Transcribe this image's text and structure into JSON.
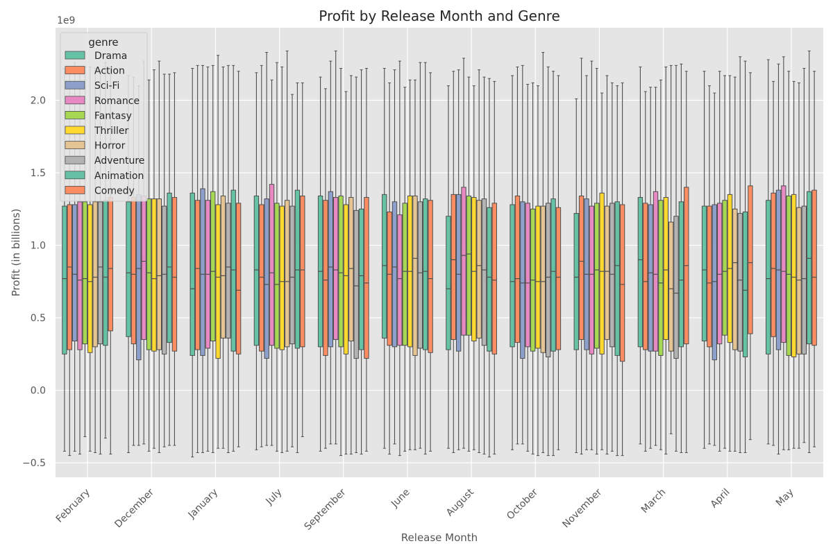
{
  "chart_data": {
    "type": "box",
    "title": "Profit by Release Month and Genre",
    "xlabel": "Release Month",
    "ylabel": "Profit (in billions)",
    "y_offset_label": "1e9",
    "ylim": [
      -0.6,
      2.5
    ],
    "y_ticks": [
      -0.5,
      0.0,
      0.5,
      1.0,
      1.5,
      2.0
    ],
    "y_tick_labels": [
      "−0.5",
      "0.0",
      "0.5",
      "1.0",
      "1.5",
      "2.0"
    ],
    "categories": [
      "February",
      "December",
      "January",
      "July",
      "September",
      "June",
      "August",
      "October",
      "November",
      "March",
      "April",
      "May"
    ],
    "legend": {
      "title": "genre",
      "position": "upper-left"
    },
    "grid": true,
    "series": [
      {
        "name": "Drama",
        "color": "#66c2a5",
        "boxes": [
          [
            -0.42,
            0.25,
            0.77,
            1.27,
            2.22
          ],
          [
            -0.43,
            0.37,
            0.81,
            1.3,
            2.17
          ],
          [
            -0.46,
            0.24,
            0.7,
            1.36,
            2.22
          ],
          [
            -0.41,
            0.31,
            0.83,
            1.34,
            2.19
          ],
          [
            -0.42,
            0.3,
            0.82,
            1.34,
            2.16
          ],
          [
            -0.4,
            0.36,
            0.86,
            1.35,
            2.22
          ],
          [
            -0.4,
            0.28,
            0.7,
            1.2,
            2.1
          ],
          [
            -0.41,
            0.3,
            0.75,
            1.28,
            2.17
          ],
          [
            -0.43,
            0.28,
            0.78,
            1.22,
            2.01
          ],
          [
            -0.37,
            0.3,
            0.9,
            1.33,
            2.23
          ],
          [
            -0.4,
            0.34,
            0.83,
            1.27,
            2.2
          ],
          [
            -0.37,
            0.25,
            0.77,
            1.31,
            2.28
          ]
        ]
      },
      {
        "name": "Action",
        "color": "#fc8d62",
        "boxes": [
          [
            -0.45,
            0.28,
            0.85,
            1.28,
            2.2
          ],
          [
            -0.38,
            0.32,
            0.8,
            1.33,
            2.16
          ],
          [
            -0.43,
            0.28,
            0.84,
            1.31,
            2.24
          ],
          [
            -0.39,
            0.27,
            0.78,
            1.28,
            2.24
          ],
          [
            -0.4,
            0.24,
            0.76,
            1.31,
            2.08
          ],
          [
            -0.44,
            0.31,
            0.8,
            1.23,
            2.12
          ],
          [
            -0.43,
            0.35,
            0.9,
            1.35,
            2.2
          ],
          [
            -0.37,
            0.33,
            0.77,
            1.34,
            2.23
          ],
          [
            -0.44,
            0.35,
            0.89,
            1.34,
            2.29
          ],
          [
            -0.42,
            0.28,
            0.75,
            1.29,
            2.06
          ],
          [
            -0.37,
            0.3,
            0.74,
            1.27,
            2.1
          ],
          [
            -0.38,
            0.37,
            0.84,
            1.36,
            2.13
          ]
        ]
      },
      {
        "name": "Sci-Fi",
        "color": "#8da0cb",
        "boxes": [
          [
            -0.42,
            0.34,
            0.8,
            1.28,
            2.26
          ],
          [
            -0.38,
            0.21,
            0.84,
            1.35,
            2.1
          ],
          [
            -0.43,
            0.24,
            0.8,
            1.39,
            2.24
          ],
          [
            -0.38,
            0.22,
            0.73,
            1.32,
            2.33
          ],
          [
            -0.37,
            0.3,
            0.85,
            1.37,
            2.27
          ],
          [
            -0.37,
            0.3,
            0.85,
            1.3,
            2.21
          ],
          [
            -0.41,
            0.27,
            0.8,
            1.35,
            2.21
          ],
          [
            -0.37,
            0.22,
            0.74,
            1.3,
            2.24
          ],
          [
            -0.41,
            0.28,
            0.8,
            1.32,
            2.17
          ],
          [
            -0.4,
            0.27,
            0.81,
            1.28,
            2.09
          ],
          [
            -0.38,
            0.21,
            0.75,
            1.28,
            2.05
          ],
          [
            -0.44,
            0.28,
            0.83,
            1.38,
            2.25
          ]
        ]
      },
      {
        "name": "Romance",
        "color": "#e78ac3",
        "boxes": [
          [
            -0.44,
            0.28,
            0.76,
            1.3,
            2.22
          ],
          [
            -0.37,
            0.35,
            0.89,
            1.34,
            2.27
          ],
          [
            -0.42,
            0.29,
            0.8,
            1.31,
            2.23
          ],
          [
            -0.38,
            0.31,
            0.81,
            1.42,
            2.14
          ],
          [
            -0.37,
            0.35,
            0.83,
            1.33,
            2.34
          ],
          [
            -0.45,
            0.31,
            0.77,
            1.21,
            2.27
          ],
          [
            -0.4,
            0.38,
            0.93,
            1.4,
            2.29
          ],
          [
            -0.42,
            0.3,
            0.74,
            1.29,
            2.11
          ],
          [
            -0.41,
            0.25,
            0.8,
            1.27,
            2.27
          ],
          [
            -0.38,
            0.27,
            0.8,
            1.37,
            2.09
          ],
          [
            -0.42,
            0.32,
            0.8,
            1.29,
            2.2
          ],
          [
            -0.41,
            0.33,
            0.82,
            1.41,
            2.3
          ]
        ]
      },
      {
        "name": "Fantasy",
        "color": "#a6d854",
        "boxes": [
          [
            -0.32,
            0.32,
            0.77,
            1.3,
            2.23
          ],
          [
            -0.42,
            0.28,
            0.81,
            1.32,
            2.14
          ],
          [
            -0.43,
            0.34,
            0.82,
            1.37,
            2.24
          ],
          [
            -0.42,
            0.29,
            0.73,
            1.29,
            2.26
          ],
          [
            -0.45,
            0.3,
            0.81,
            1.34,
            2.22
          ],
          [
            -0.42,
            0.31,
            0.82,
            1.29,
            2.09
          ],
          [
            -0.42,
            0.38,
            0.94,
            1.34,
            2.16
          ],
          [
            -0.44,
            0.27,
            0.76,
            1.25,
            2.12
          ],
          [
            -0.44,
            0.29,
            0.83,
            1.29,
            2.22
          ],
          [
            -0.41,
            0.24,
            0.74,
            1.31,
            2.14
          ],
          [
            -0.4,
            0.38,
            0.82,
            1.31,
            2.17
          ],
          [
            -0.41,
            0.24,
            0.8,
            1.34,
            2.2
          ]
        ]
      },
      {
        "name": "Thriller",
        "color": "#ffd92f",
        "boxes": [
          [
            -0.42,
            0.26,
            0.75,
            1.28,
            2.23
          ],
          [
            -0.4,
            0.27,
            0.77,
            1.32,
            2.21
          ],
          [
            -0.4,
            0.22,
            0.78,
            1.28,
            2.31
          ],
          [
            -0.43,
            0.28,
            0.75,
            1.27,
            2.23
          ],
          [
            -0.44,
            0.25,
            0.79,
            1.28,
            2.06
          ],
          [
            -0.41,
            0.3,
            0.82,
            1.34,
            2.14
          ],
          [
            -0.41,
            0.34,
            0.82,
            1.33,
            2.1
          ],
          [
            -0.45,
            0.29,
            0.75,
            1.27,
            2.1
          ],
          [
            -0.41,
            0.25,
            0.82,
            1.36,
            2.05
          ],
          [
            -0.44,
            0.35,
            0.83,
            1.33,
            2.23
          ],
          [
            -0.42,
            0.33,
            0.84,
            1.35,
            2.17
          ],
          [
            -0.4,
            0.23,
            0.78,
            1.35,
            2.13
          ]
        ]
      },
      {
        "name": "Horror",
        "color": "#e5c494",
        "boxes": [
          [
            -0.43,
            0.3,
            0.78,
            1.3,
            2.22
          ],
          [
            -0.43,
            0.28,
            0.79,
            1.32,
            2.27
          ],
          [
            -0.4,
            0.36,
            0.79,
            1.34,
            2.23
          ],
          [
            -0.42,
            0.3,
            0.75,
            1.31,
            2.34
          ],
          [
            -0.44,
            0.34,
            0.84,
            1.33,
            2.17
          ],
          [
            -0.41,
            0.24,
            0.91,
            1.34,
            2.14
          ],
          [
            -0.43,
            0.36,
            0.86,
            1.31,
            2.21
          ],
          [
            -0.43,
            0.26,
            0.75,
            1.27,
            2.33
          ],
          [
            -0.44,
            0.35,
            0.82,
            1.27,
            2.17
          ],
          [
            -0.3,
            0.27,
            0.7,
            1.16,
            2.24
          ],
          [
            -0.42,
            0.28,
            0.88,
            1.25,
            2.16
          ],
          [
            -0.4,
            0.25,
            0.76,
            1.26,
            2.12
          ]
        ]
      },
      {
        "name": "Adventure",
        "color": "#b3b3b3",
        "boxes": [
          [
            -0.44,
            0.32,
            0.85,
            1.3,
            2.2
          ],
          [
            -0.39,
            0.25,
            0.8,
            1.27,
            2.18
          ],
          [
            -0.43,
            0.36,
            0.85,
            1.29,
            2.24
          ],
          [
            -0.39,
            0.32,
            0.78,
            1.27,
            2.04
          ],
          [
            -0.43,
            0.22,
            0.72,
            1.24,
            2.16
          ],
          [
            -0.4,
            0.29,
            0.81,
            1.3,
            2.26
          ],
          [
            -0.44,
            0.31,
            0.83,
            1.32,
            2.16
          ],
          [
            -0.45,
            0.23,
            0.78,
            1.29,
            2.23
          ],
          [
            -0.42,
            0.3,
            0.8,
            1.29,
            2.12
          ],
          [
            -0.42,
            0.22,
            0.67,
            1.2,
            2.24
          ],
          [
            -0.43,
            0.27,
            0.76,
            1.22,
            2.3
          ],
          [
            -0.36,
            0.25,
            0.77,
            1.27,
            2.22
          ]
        ]
      },
      {
        "name": "Animation",
        "color": "#66c2a5",
        "boxes": [
          [
            -0.33,
            0.31,
            0.78,
            1.31,
            2.26
          ],
          [
            -0.38,
            0.33,
            0.85,
            1.36,
            2.18
          ],
          [
            -0.42,
            0.27,
            0.83,
            1.38,
            2.24
          ],
          [
            -0.43,
            0.29,
            0.83,
            1.38,
            2.12
          ],
          [
            -0.44,
            0.28,
            0.79,
            1.25,
            2.21
          ],
          [
            -0.44,
            0.28,
            0.82,
            1.32,
            2.26
          ],
          [
            -0.46,
            0.27,
            0.78,
            1.26,
            2.15
          ],
          [
            -0.45,
            0.27,
            0.82,
            1.32,
            2.2
          ],
          [
            -0.45,
            0.24,
            0.86,
            1.3,
            2.1
          ],
          [
            -0.43,
            0.3,
            0.76,
            1.3,
            2.25
          ],
          [
            -0.43,
            0.23,
            0.69,
            1.23,
            2.27
          ],
          [
            -0.43,
            0.32,
            0.91,
            1.37,
            2.34
          ]
        ]
      },
      {
        "name": "Comedy",
        "color": "#fc8d62",
        "boxes": [
          [
            -0.44,
            0.41,
            0.84,
            1.33,
            2.22
          ],
          [
            -0.38,
            0.27,
            0.78,
            1.33,
            2.19
          ],
          [
            -0.39,
            0.25,
            0.69,
            1.29,
            2.2
          ],
          [
            -0.32,
            0.3,
            0.83,
            1.34,
            2.12
          ],
          [
            -0.42,
            0.22,
            0.74,
            1.33,
            2.22
          ],
          [
            -0.42,
            0.26,
            0.77,
            1.31,
            2.19
          ],
          [
            -0.44,
            0.25,
            0.76,
            1.29,
            2.13
          ],
          [
            -0.41,
            0.28,
            0.78,
            1.26,
            2.17
          ],
          [
            -0.45,
            0.2,
            0.73,
            1.28,
            2.12
          ],
          [
            -0.43,
            0.32,
            0.86,
            1.4,
            2.2
          ],
          [
            -0.34,
            0.39,
            0.88,
            1.41,
            2.19
          ],
          [
            -0.39,
            0.31,
            0.78,
            1.38,
            2.2
          ]
        ]
      }
    ]
  }
}
